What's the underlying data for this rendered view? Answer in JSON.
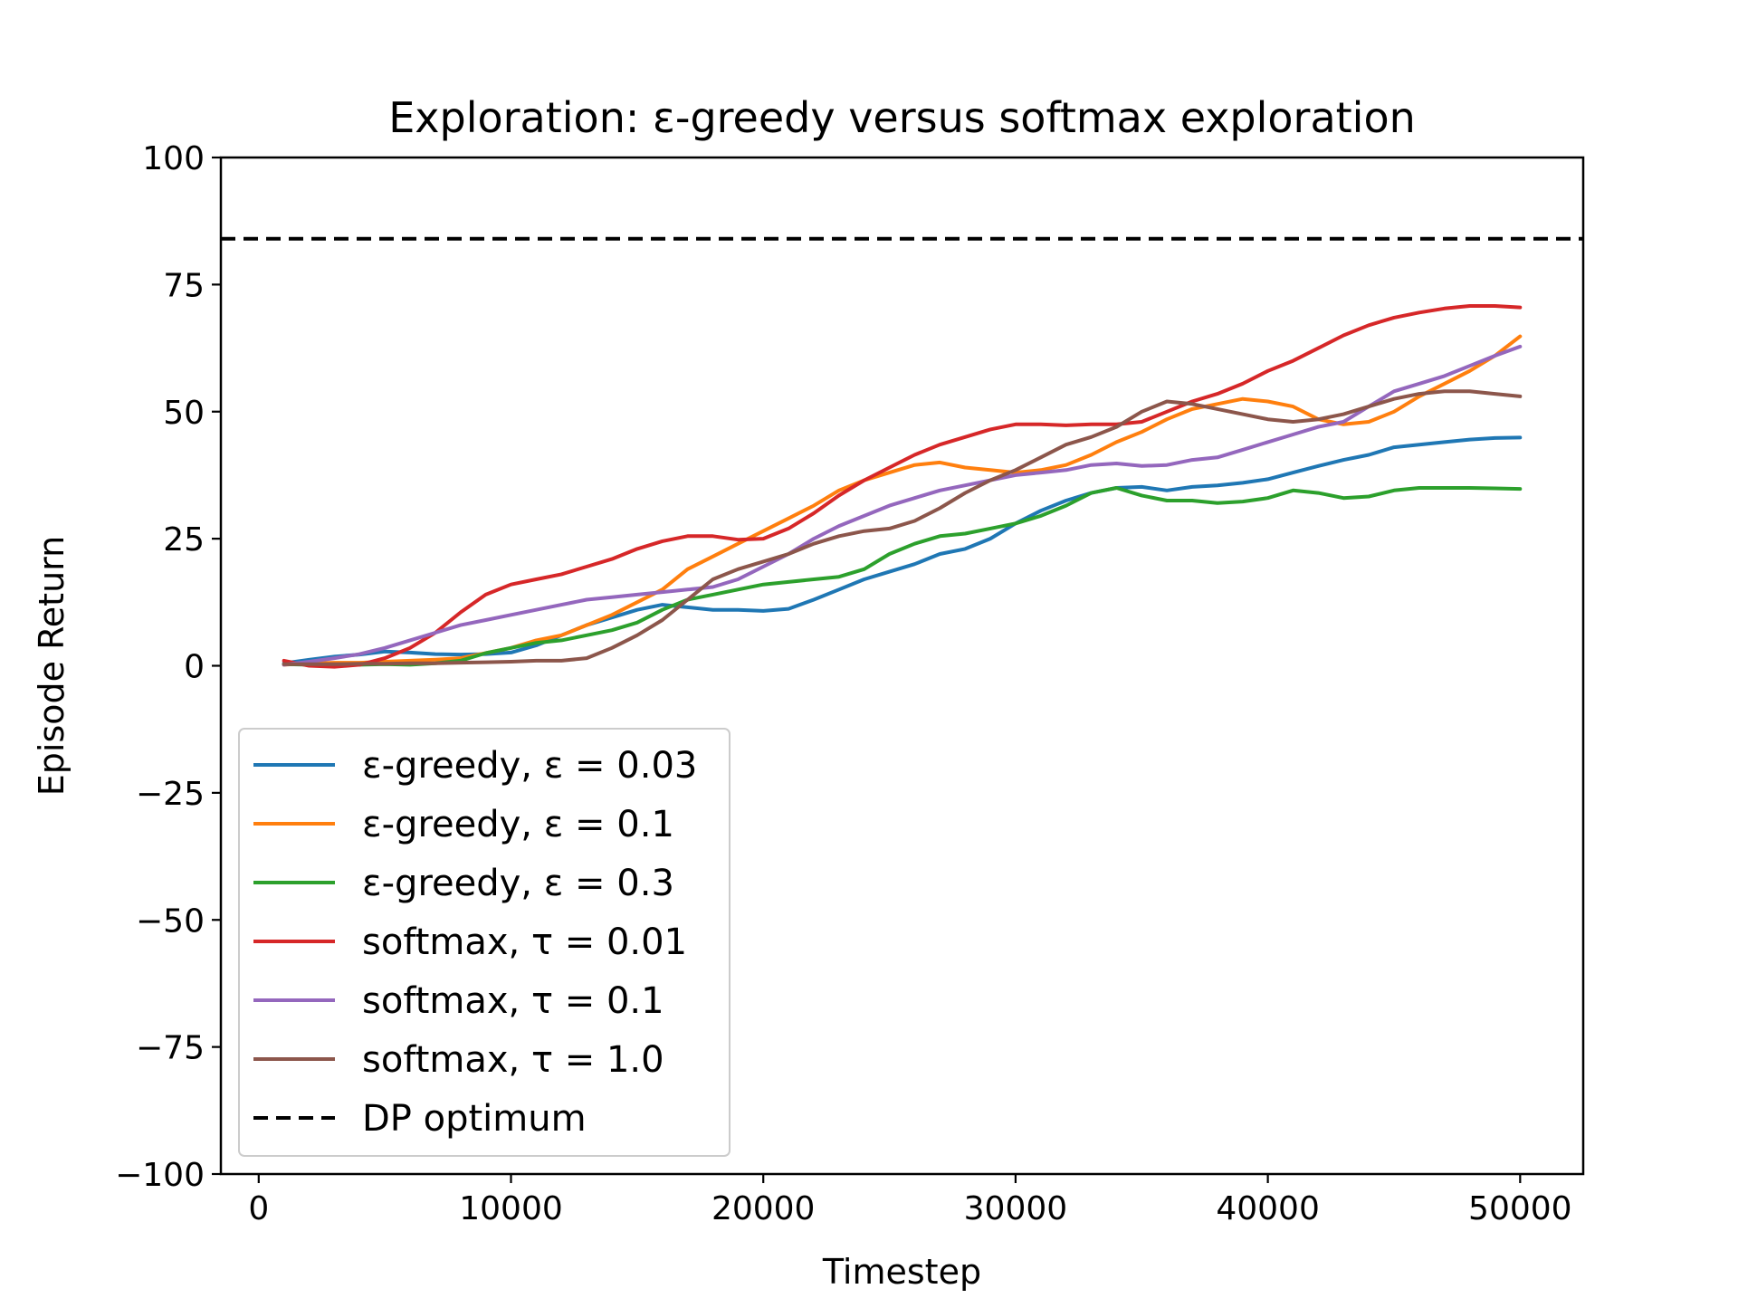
{
  "chart_data": {
    "type": "line",
    "title": "Exploration: ε-greedy versus softmax exploration",
    "xlabel": "Timestep",
    "ylabel": "Episode Return",
    "xlim": [
      -1500,
      52500
    ],
    "ylim": [
      -100,
      100
    ],
    "x_ticks": [
      0,
      10000,
      20000,
      30000,
      40000,
      50000
    ],
    "x_tick_labels": [
      "0",
      "10000",
      "20000",
      "30000",
      "40000",
      "50000"
    ],
    "y_ticks": [
      -100,
      -75,
      -50,
      -25,
      0,
      25,
      50,
      75,
      100
    ],
    "y_tick_labels": [
      "−100",
      "−75",
      "−50",
      "−25",
      "0",
      "25",
      "50",
      "75",
      "100"
    ],
    "grid": false,
    "legend_position": "lower-left",
    "x": [
      1000,
      2000,
      3000,
      4000,
      5000,
      6000,
      7000,
      8000,
      9000,
      10000,
      11000,
      12000,
      13000,
      14000,
      15000,
      16000,
      17000,
      18000,
      19000,
      20000,
      21000,
      22000,
      23000,
      24000,
      25000,
      26000,
      27000,
      28000,
      29000,
      30000,
      31000,
      32000,
      33000,
      34000,
      35000,
      36000,
      37000,
      38000,
      39000,
      40000,
      41000,
      42000,
      43000,
      44000,
      45000,
      46000,
      47000,
      48000,
      49000,
      50000
    ],
    "series": [
      {
        "name": "ε-greedy, ε = 0.03",
        "color": "#1f77b4",
        "dashed": false,
        "values": [
          0.5,
          1.2,
          1.8,
          2.2,
          2.8,
          2.6,
          2.3,
          2.2,
          2.3,
          2.6,
          4.0,
          6.0,
          8.0,
          9.5,
          11.0,
          12.0,
          11.5,
          11.0,
          11.0,
          10.8,
          11.2,
          13.0,
          15.0,
          17.0,
          18.5,
          20.0,
          22.0,
          23.0,
          25.0,
          28.0,
          30.5,
          32.5,
          34.0,
          35.0,
          35.2,
          34.5,
          35.2,
          35.5,
          36.0,
          36.7,
          38.0,
          39.3,
          40.5,
          41.5,
          43.0,
          43.5,
          44.0,
          44.5,
          44.8,
          44.9
        ]
      },
      {
        "name": "ε-greedy, ε = 0.1",
        "color": "#ff7f0e",
        "dashed": false,
        "values": [
          0.2,
          0.5,
          0.6,
          0.6,
          0.8,
          1.0,
          1.2,
          1.5,
          2.5,
          3.5,
          5.0,
          6.0,
          8.0,
          10.0,
          12.5,
          15.0,
          19.0,
          21.5,
          24.0,
          26.5,
          29.0,
          31.5,
          34.5,
          36.5,
          38.0,
          39.5,
          40.0,
          39.0,
          38.5,
          38.0,
          38.5,
          39.5,
          41.5,
          44.0,
          46.0,
          48.5,
          50.5,
          51.5,
          52.5,
          52.0,
          51.0,
          48.5,
          47.5,
          48.0,
          50.0,
          53.0,
          55.5,
          58.0,
          61.0,
          64.8
        ]
      },
      {
        "name": "ε-greedy, ε = 0.3",
        "color": "#2ca02c",
        "dashed": false,
        "values": [
          0.3,
          0.2,
          0.2,
          0.2,
          0.3,
          0.2,
          0.5,
          1.0,
          2.5,
          3.5,
          4.5,
          5.0,
          6.0,
          7.0,
          8.5,
          11.0,
          13.0,
          14.0,
          15.0,
          16.0,
          16.5,
          17.0,
          17.5,
          19.0,
          22.0,
          24.0,
          25.5,
          26.0,
          27.0,
          28.0,
          29.5,
          31.5,
          34.0,
          35.0,
          33.5,
          32.5,
          32.5,
          32.0,
          32.3,
          33.0,
          34.5,
          34.0,
          33.0,
          33.3,
          34.5,
          35.0,
          35.0,
          35.0,
          34.9,
          34.8
        ]
      },
      {
        "name": "softmax, τ = 0.01",
        "color": "#d62728",
        "dashed": false,
        "values": [
          1.0,
          0.0,
          -0.2,
          0.2,
          1.5,
          3.5,
          6.5,
          10.5,
          14.0,
          16.0,
          17.0,
          18.0,
          19.5,
          21.0,
          23.0,
          24.5,
          25.5,
          25.5,
          24.8,
          25.0,
          27.0,
          30.0,
          33.5,
          36.5,
          39.0,
          41.5,
          43.5,
          45.0,
          46.5,
          47.5,
          47.5,
          47.3,
          47.5,
          47.5,
          48.0,
          50.0,
          52.0,
          53.5,
          55.5,
          58.0,
          60.0,
          62.5,
          65.0,
          67.0,
          68.5,
          69.5,
          70.3,
          70.8,
          70.8,
          70.5
        ]
      },
      {
        "name": "softmax, τ = 0.1",
        "color": "#9467bd",
        "dashed": false,
        "values": [
          0.2,
          0.8,
          1.5,
          2.3,
          3.5,
          5.0,
          6.5,
          8.0,
          9.0,
          10.0,
          11.0,
          12.0,
          13.0,
          13.5,
          14.0,
          14.5,
          15.0,
          15.5,
          17.0,
          19.5,
          22.0,
          25.0,
          27.5,
          29.5,
          31.5,
          33.0,
          34.5,
          35.5,
          36.5,
          37.5,
          38.0,
          38.5,
          39.5,
          39.8,
          39.3,
          39.5,
          40.5,
          41.0,
          42.5,
          44.0,
          45.5,
          47.0,
          48.0,
          51.0,
          54.0,
          55.5,
          57.0,
          59.0,
          61.0,
          62.8
        ]
      },
      {
        "name": "softmax, τ = 1.0",
        "color": "#8c564b",
        "dashed": false,
        "values": [
          0.3,
          0.3,
          0.3,
          0.4,
          0.4,
          0.5,
          0.5,
          0.6,
          0.7,
          0.8,
          1.0,
          1.0,
          1.5,
          3.5,
          6.0,
          9.0,
          13.0,
          17.0,
          19.0,
          20.5,
          22.0,
          24.0,
          25.5,
          26.5,
          27.0,
          28.5,
          31.0,
          34.0,
          36.5,
          38.5,
          41.0,
          43.5,
          45.0,
          47.0,
          50.0,
          52.0,
          51.5,
          50.5,
          49.5,
          48.5,
          48.0,
          48.5,
          49.5,
          51.0,
          52.5,
          53.5,
          54.0,
          54.0,
          53.5,
          53.0
        ]
      },
      {
        "name": "DP optimum",
        "color": "#000000",
        "dashed": true,
        "x": [
          -1500,
          52500
        ],
        "values": [
          84,
          84
        ]
      }
    ]
  }
}
